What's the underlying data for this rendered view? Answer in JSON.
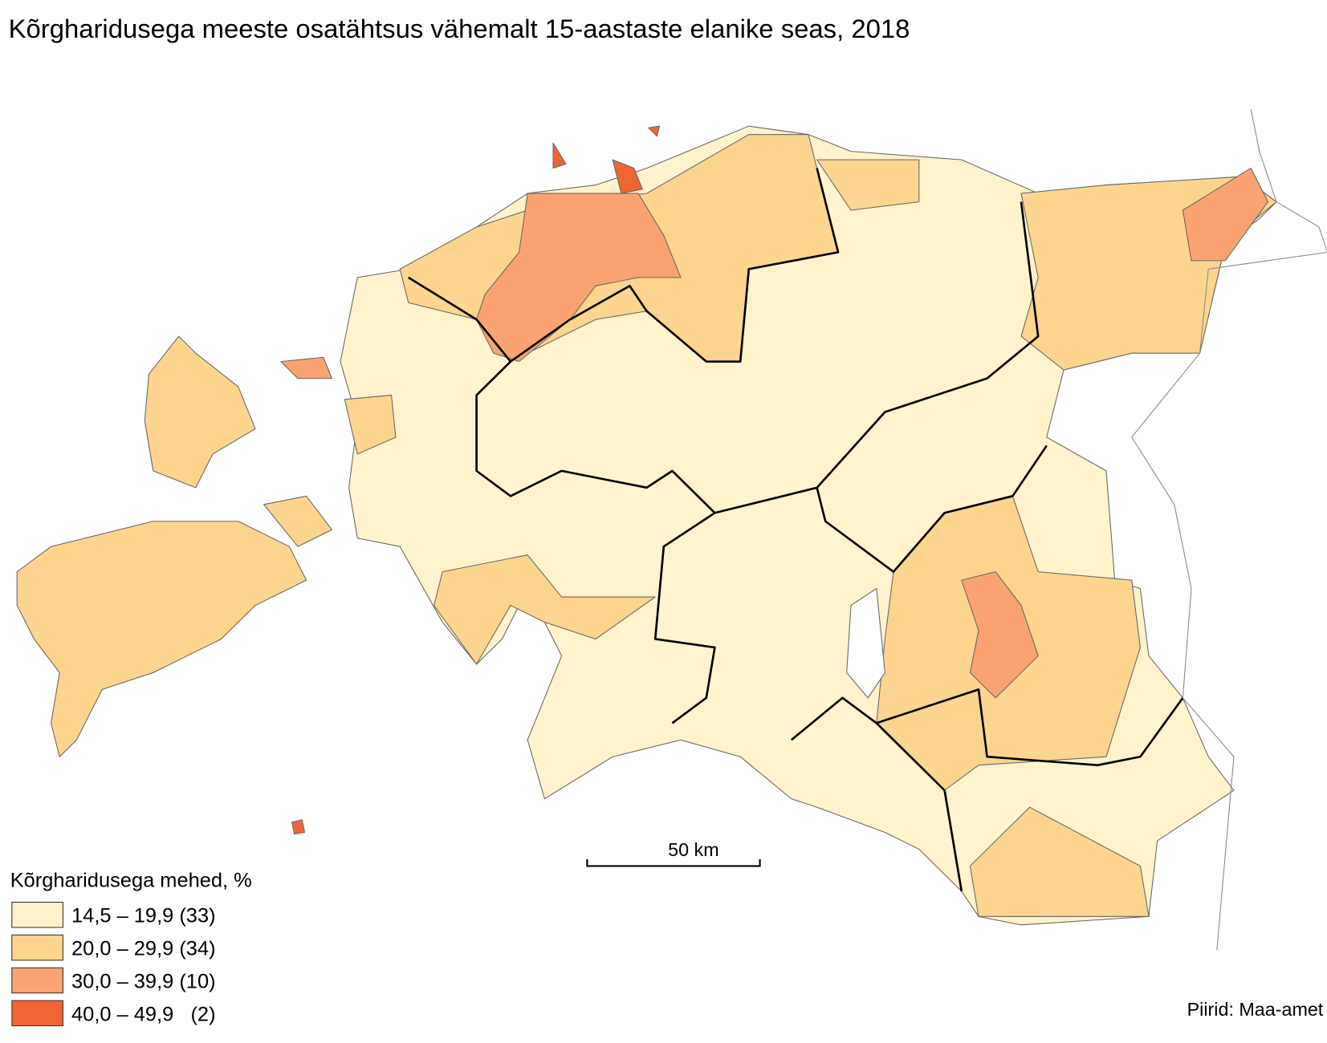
{
  "title": "Kõrgharidusega meeste osatähtsus vähemalt 15-aastaste elanike seas, 2018",
  "legend": {
    "title": "Kõrgharidusega mehed, %",
    "items": [
      {
        "label": "14,5 – 19,9 (33)",
        "color": "#fff3cc"
      },
      {
        "label": "20,0 – 29,9 (34)",
        "color": "#fdd58f"
      },
      {
        "label": "30,0 – 39,9 (10)",
        "color": "#fba372"
      },
      {
        "label": "40,0 – 49,9   (2)",
        "color": "#f06434"
      }
    ]
  },
  "scale_bar": {
    "label": "50 km"
  },
  "source": "Piirid: Maa-amet"
}
